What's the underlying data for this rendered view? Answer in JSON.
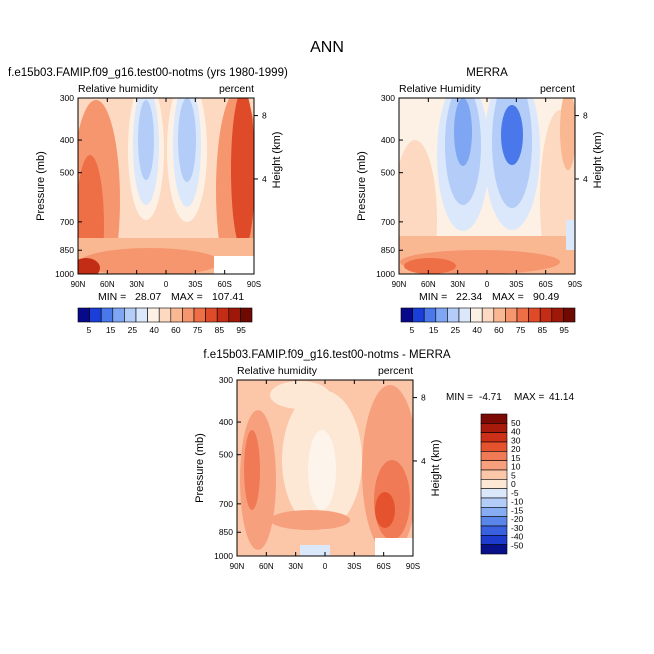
{
  "figure_title": "ANN",
  "chart_data": [
    {
      "type": "heatmap",
      "title": "f.e15b03.FAMIP.f09_g16.test00-notms (yrs 1980-1999)",
      "left_string": "Relative humidity",
      "right_string": "percent",
      "ylabel": "Pressure (mb)",
      "y2label": "Height (km)",
      "x_ticks": [
        "90N",
        "60N",
        "30N",
        "0",
        "30S",
        "60S",
        "90S"
      ],
      "y_ticks": [
        "300",
        "400",
        "500",
        "700",
        "850",
        "1000"
      ],
      "y2_ticks": [
        "8",
        "4"
      ],
      "stats": {
        "min_label": "MIN =",
        "min": "28.07",
        "max_label": "MAX =",
        "max": "107.41"
      },
      "colorbar_levels": [
        "5",
        "15",
        "25",
        "40",
        "60",
        "75",
        "85",
        "95"
      ]
    },
    {
      "type": "heatmap",
      "title": "MERRA",
      "left_string": "Relative Humidity",
      "right_string": "percent",
      "ylabel": "Pressure (mb)",
      "y2label": "Height (km)",
      "x_ticks": [
        "90N",
        "60N",
        "30N",
        "0",
        "30S",
        "60S",
        "90S"
      ],
      "y_ticks": [
        "300",
        "400",
        "500",
        "700",
        "850",
        "1000"
      ],
      "y2_ticks": [
        "8",
        "4"
      ],
      "stats": {
        "min_label": "MIN =",
        "min": "22.34",
        "max_label": "MAX =",
        "max": "90.49"
      },
      "colorbar_levels": [
        "5",
        "15",
        "25",
        "40",
        "60",
        "75",
        "85",
        "95"
      ]
    },
    {
      "type": "heatmap",
      "title": "f.e15b03.FAMIP.f09_g16.test00-notms - MERRA",
      "left_string": "Relative humidity",
      "right_string": "percent",
      "ylabel": "Pressure (mb)",
      "y2label": "Height (km)",
      "x_ticks": [
        "90N",
        "60N",
        "30N",
        "0",
        "30S",
        "60S",
        "90S"
      ],
      "y_ticks": [
        "300",
        "400",
        "500",
        "700",
        "850",
        "1000"
      ],
      "y2_ticks": [
        "8",
        "4"
      ],
      "stats": {
        "min_label": "MIN =",
        "min": "-4.71",
        "max_label": "MAX =",
        "max": "41.14"
      },
      "colorbar_levels": [
        "50",
        "40",
        "30",
        "20",
        "15",
        "10",
        "5",
        "0",
        "-5",
        "-10",
        "-15",
        "-20",
        "-30",
        "-40",
        "-50"
      ]
    }
  ],
  "colors": {
    "abs_scale": [
      "#08088a",
      "#1a3fd8",
      "#4a78ea",
      "#7ea6f3",
      "#b3cdf8",
      "#dbe8fb",
      "#fdf1e6",
      "#fcd9c0",
      "#f9b892",
      "#f5966e",
      "#ee6e46",
      "#df4a28",
      "#c42d15",
      "#9d1808",
      "#6f0a03"
    ],
    "diff_scale": [
      "#7a0a03",
      "#a81a0b",
      "#cc3018",
      "#e4522e",
      "#f07a56",
      "#f7a07e",
      "#fbc7a8",
      "#fde8d6",
      "#dbe8fb",
      "#b3cdf8",
      "#86acf3",
      "#5a86ea",
      "#3860df",
      "#1d3bcd",
      "#08108a"
    ]
  }
}
